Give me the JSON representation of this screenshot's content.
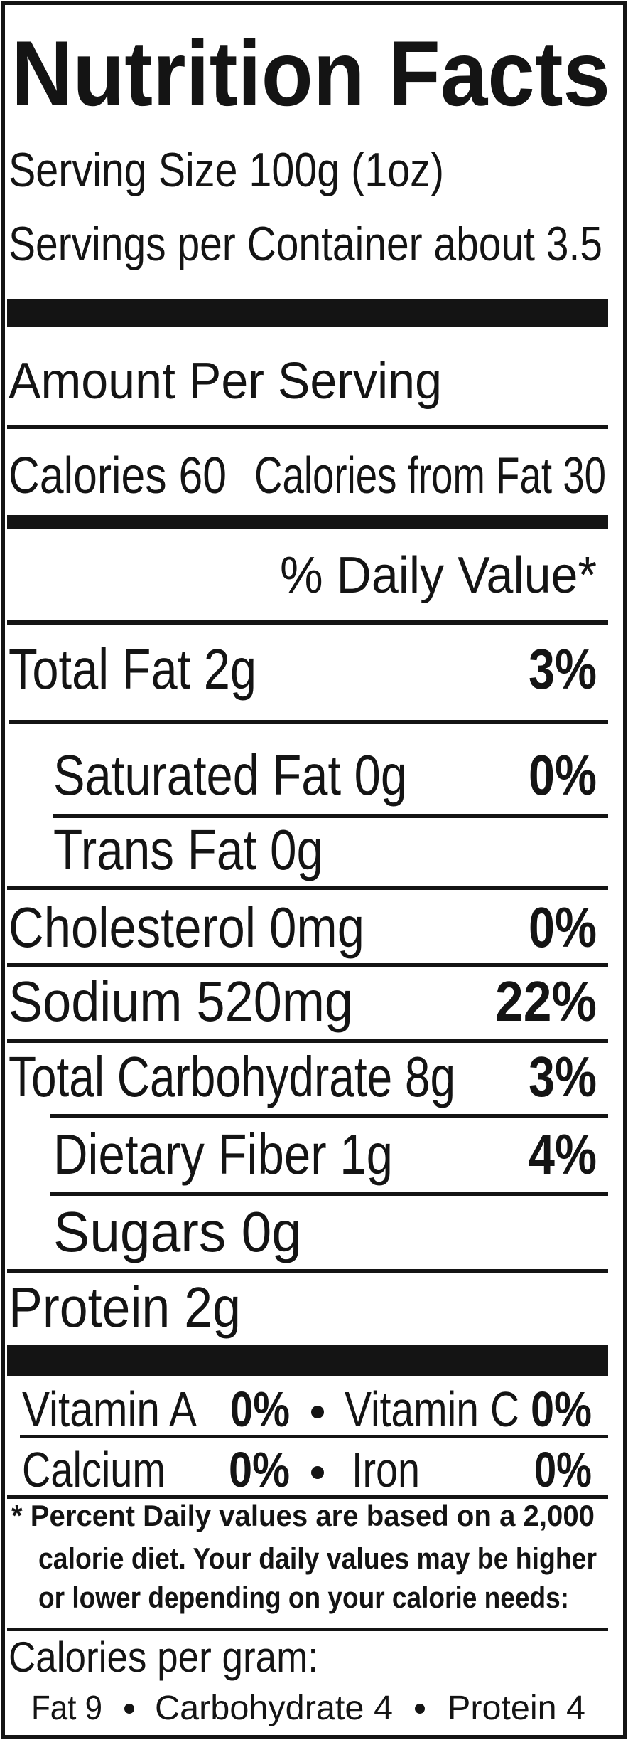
{
  "title": "Nutrition Facts",
  "serving_size": {
    "label": "Serving Size",
    "value": "100g (1oz)"
  },
  "servings_per_container": {
    "label": "Servings per Container",
    "value": "about 3.5"
  },
  "amount_per_serving": "Amount Per Serving",
  "calories": {
    "label": "Calories",
    "value": 60
  },
  "calories_from_fat": {
    "label": "Calories from Fat",
    "value": 30
  },
  "daily_value_header": "% Daily Value*",
  "nutrients": [
    {
      "name": "Total Fat",
      "amount": "2g",
      "percent": "3%"
    },
    {
      "name": "Saturated Fat",
      "amount": "0g",
      "percent": "0%"
    },
    {
      "name": "Trans Fat",
      "amount": "0g"
    },
    {
      "name": "Cholesterol",
      "amount": "0mg",
      "percent": "0%"
    },
    {
      "name": "Sodium",
      "amount": "520mg",
      "percent": "22%"
    },
    {
      "name": "Total Carbohydrate",
      "amount": "8g",
      "percent": "3%"
    },
    {
      "name": "Dietary Fiber",
      "amount": "1g",
      "percent": "4%"
    },
    {
      "name": "Sugars",
      "amount": "0g"
    },
    {
      "name": "Protein",
      "amount": "2g"
    }
  ],
  "vitamins": [
    {
      "name": "Vitamin A",
      "percent": "0%"
    },
    {
      "name": "Vitamin C",
      "percent": "0%"
    },
    {
      "name": "Calcium",
      "percent": "0%"
    },
    {
      "name": "Iron",
      "percent": "0%"
    }
  ],
  "footnote": [
    "* Percent Daily values are based on a 2,000",
    "calorie diet.  Your daily values may be higher",
    "or lower depending on your calorie needs:"
  ],
  "calories_per_gram": {
    "label": "Calories per gram:",
    "items": [
      {
        "name": "Fat",
        "value": 9
      },
      {
        "name": "Carbohydrate",
        "value": 4
      },
      {
        "name": "Protein",
        "value": 4
      }
    ]
  }
}
